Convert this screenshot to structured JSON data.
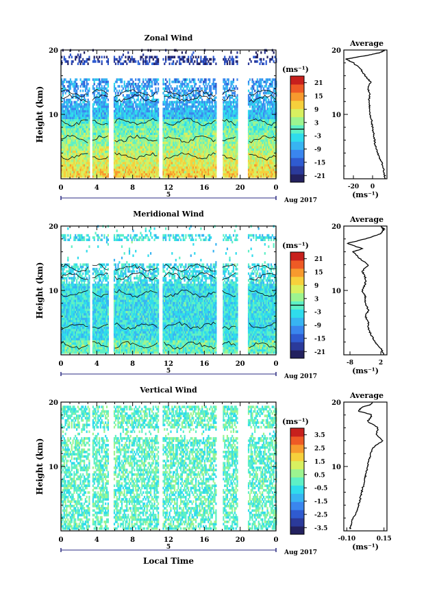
{
  "chart_data": [
    {
      "type": "heatmap",
      "title": "Zonal Wind",
      "ylabel": "Height (km)",
      "ylim": [
        0,
        20
      ],
      "yticks": [
        10,
        20
      ],
      "xlim": [
        0,
        24
      ],
      "xticks": [
        "0",
        "4",
        "8",
        "12",
        "16",
        "20",
        "0"
      ],
      "date_label": "5",
      "month_label": "Aug 2017",
      "colorbar": {
        "unit": "(ms⁻¹)",
        "ticks": [
          "21",
          "15",
          "9",
          "3",
          "-3",
          "-9",
          "-15",
          "-21"
        ],
        "range": [
          -24,
          24
        ],
        "zero_line": 0
      },
      "average_profile": {
        "title": "Average",
        "xlabel": "(ms⁻¹)",
        "xticks": [
          "-20",
          "0"
        ],
        "xlim": [
          -30,
          15
        ],
        "yticks": [
          "10",
          "20"
        ],
        "profile": [
          [
            13,
            0
          ],
          [
            12,
            1
          ],
          [
            11,
            2
          ],
          [
            8,
            3
          ],
          [
            5,
            4
          ],
          [
            3,
            5
          ],
          [
            2,
            6
          ],
          [
            1,
            7
          ],
          [
            0,
            8
          ],
          [
            -1,
            9
          ],
          [
            -3,
            10
          ],
          [
            -3,
            11
          ],
          [
            -4,
            12
          ],
          [
            -3,
            13
          ],
          [
            -5,
            14
          ],
          [
            -2,
            15
          ],
          [
            -8,
            16
          ],
          [
            -12,
            17
          ],
          [
            -20,
            18
          ],
          [
            -28,
            18.6
          ],
          [
            -4,
            19.2
          ],
          [
            8,
            19.6
          ],
          [
            13,
            20
          ]
        ]
      }
    },
    {
      "type": "heatmap",
      "title": "Meridional Wind",
      "ylabel": "Height (km)",
      "ylim": [
        0,
        20
      ],
      "yticks": [
        10,
        20
      ],
      "xlim": [
        0,
        24
      ],
      "xticks": [
        "0",
        "4",
        "8",
        "12",
        "16",
        "20",
        "0"
      ],
      "date_label": "5",
      "month_label": "Aug 2017",
      "colorbar": {
        "unit": "(ms⁻¹)",
        "ticks": [
          "21",
          "15",
          "9",
          "3",
          "-3",
          "-9",
          "-15",
          "-21"
        ],
        "range": [
          -24,
          24
        ],
        "zero_line": 0
      },
      "average_profile": {
        "title": "Average",
        "xlabel": "(ms⁻¹)",
        "xticks": [
          "-8",
          "2"
        ],
        "xlim": [
          -10,
          4
        ],
        "yticks": [
          "10",
          "20"
        ],
        "profile": [
          [
            3,
            0
          ],
          [
            2,
            1
          ],
          [
            0,
            2
          ],
          [
            -1,
            3
          ],
          [
            -2,
            4
          ],
          [
            -2,
            5
          ],
          [
            -3,
            6
          ],
          [
            -2,
            7
          ],
          [
            -3,
            8
          ],
          [
            -3,
            9
          ],
          [
            -4,
            10
          ],
          [
            -3,
            11
          ],
          [
            -3,
            12
          ],
          [
            -4,
            13
          ],
          [
            -2,
            14
          ],
          [
            -5,
            15
          ],
          [
            -7,
            16
          ],
          [
            -4,
            16.5
          ],
          [
            -9,
            17.3
          ],
          [
            -3,
            18
          ],
          [
            2,
            18.8
          ],
          [
            3,
            19.5
          ],
          [
            2,
            20
          ]
        ]
      }
    },
    {
      "type": "heatmap",
      "title": "Vertical Wind",
      "ylabel": "Height (km)",
      "xlabel": "Local Time",
      "ylim": [
        0,
        20
      ],
      "yticks": [
        10,
        20
      ],
      "xlim": [
        0,
        24
      ],
      "xticks": [
        "0",
        "4",
        "8",
        "12",
        "16",
        "20",
        "0"
      ],
      "date_label": "5",
      "month_label": "Aug 2017",
      "colorbar": {
        "unit": "(ms⁻¹)",
        "ticks": [
          "3.5",
          "2.5",
          "1.5",
          "0.5",
          "-0.5",
          "-1.5",
          "-2.5",
          "-3.5"
        ],
        "range": [
          -4,
          4
        ]
      },
      "average_profile": {
        "title": "Average",
        "xlabel": "(ms⁻¹)",
        "xticks": [
          "-0.10",
          "0.15"
        ],
        "xlim": [
          -0.12,
          0.17
        ],
        "yticks": [
          "10",
          "20"
        ],
        "profile": [
          [
            -0.08,
            0.3
          ],
          [
            -0.07,
            1
          ],
          [
            -0.06,
            2
          ],
          [
            -0.03,
            3
          ],
          [
            -0.02,
            4
          ],
          [
            -0.01,
            5
          ],
          [
            0.0,
            6
          ],
          [
            0.01,
            7
          ],
          [
            0.02,
            8
          ],
          [
            0.03,
            9
          ],
          [
            0.04,
            10
          ],
          [
            0.05,
            11
          ],
          [
            0.06,
            12
          ],
          [
            0.08,
            13
          ],
          [
            0.14,
            14
          ],
          [
            0.1,
            15
          ],
          [
            0.11,
            16
          ],
          [
            0.04,
            17
          ],
          [
            0.07,
            18
          ],
          [
            -0.02,
            18.6
          ],
          [
            0.0,
            19.2
          ],
          [
            0.06,
            19.6
          ],
          [
            0.07,
            20
          ]
        ]
      }
    }
  ]
}
